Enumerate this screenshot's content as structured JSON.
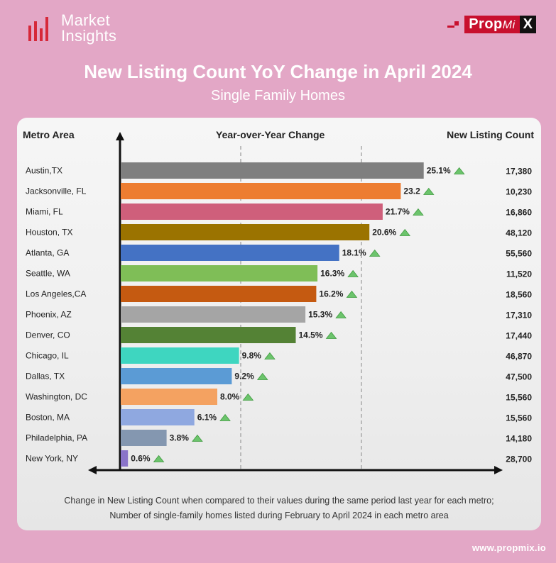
{
  "brand": {
    "logo_line1": "Market",
    "logo_line2": "Insights",
    "partner_prop": "Prop",
    "partner_mi": "Mi",
    "partner_x": "X",
    "website": "www.propmix.io"
  },
  "headers": {
    "metro": "Metro Area",
    "yoy": "Year-over-Year Change",
    "count": "New Listing Count"
  },
  "footnotes": {
    "line1": "Change in New Listing Count when compared to their values during the same period last year for each metro;",
    "line2": "Number of single-family homes listed during February to April 2024 in each metro area"
  },
  "chart_data": {
    "type": "bar",
    "orientation": "horizontal",
    "title": "New Listing Count YoY Change in April 2024",
    "subtitle": "Single Family Homes",
    "categories": [
      "Austin,TX",
      "Jacksonville, FL",
      "Miami, FL",
      "Houston, TX",
      "Atlanta, GA",
      "Seattle, WA",
      "Los Angeles,CA",
      "Phoenix, AZ",
      "Denver, CO",
      "Chicago, IL",
      "Dallas, TX",
      "Washington, DC",
      "Boston, MA",
      "Philadelphia, PA",
      "New York, NY"
    ],
    "values": [
      25.1,
      23.2,
      21.7,
      20.6,
      18.1,
      16.3,
      16.2,
      15.3,
      14.5,
      9.8,
      9.2,
      8.0,
      6.1,
      3.8,
      0.6
    ],
    "value_labels": [
      "25.1%",
      "23.2",
      "21.7%",
      "20.6%",
      "18.1%",
      "16.3%",
      "16.2%",
      "15.3%",
      "14.5%",
      "9.8%",
      "9.2%",
      "8.0%",
      "6.1%",
      "3.8%",
      "0.6%"
    ],
    "counts": [
      "17,380",
      "10,230",
      "16,860",
      "48,120",
      "55,560",
      "11,520",
      "18,560",
      "17,310",
      "17,440",
      "46,870",
      "47,500",
      "15,560",
      "15,560",
      "14,180",
      "28,700"
    ],
    "colors": [
      "#7f7f7f",
      "#ed7d31",
      "#cf5f7b",
      "#9b7300",
      "#4472c4",
      "#7fbe57",
      "#c55a11",
      "#a5a5a5",
      "#548235",
      "#3ed6c0",
      "#5b9bd5",
      "#f4a261",
      "#8fa8e0",
      "#8497b0",
      "#8a74c9"
    ],
    "xlim": [
      0,
      30
    ],
    "gridlines": [
      10,
      20
    ],
    "grid": true,
    "trend_marker": "up-triangle",
    "trend_color": "#6cc46c"
  }
}
